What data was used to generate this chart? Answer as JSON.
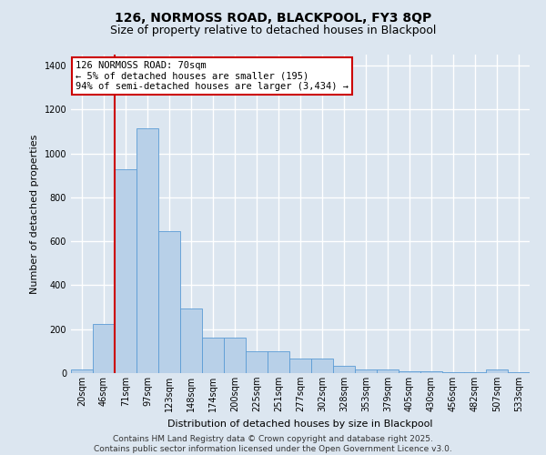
{
  "title": "126, NORMOSS ROAD, BLACKPOOL, FY3 8QP",
  "subtitle": "Size of property relative to detached houses in Blackpool",
  "xlabel": "Distribution of detached houses by size in Blackpool",
  "ylabel": "Number of detached properties",
  "footer": "Contains HM Land Registry data © Crown copyright and database right 2025.\nContains public sector information licensed under the Open Government Licence v3.0.",
  "categories": [
    "20sqm",
    "46sqm",
    "71sqm",
    "97sqm",
    "123sqm",
    "148sqm",
    "174sqm",
    "200sqm",
    "225sqm",
    "251sqm",
    "277sqm",
    "302sqm",
    "328sqm",
    "353sqm",
    "379sqm",
    "405sqm",
    "430sqm",
    "456sqm",
    "482sqm",
    "507sqm",
    "533sqm"
  ],
  "values": [
    15,
    225,
    930,
    1115,
    645,
    295,
    160,
    160,
    100,
    100,
    65,
    65,
    32,
    18,
    18,
    10,
    10,
    5,
    5,
    15,
    3
  ],
  "bar_color": "#b8d0e8",
  "bar_edge_color": "#5b9bd5",
  "annotation_text": "126 NORMOSS ROAD: 70sqm\n← 5% of detached houses are smaller (195)\n94% of semi-detached houses are larger (3,434) →",
  "annotation_box_color": "#ffffff",
  "annotation_box_edge_color": "#cc0000",
  "vline_x": 1.5,
  "vline_color": "#cc0000",
  "ylim": [
    0,
    1450
  ],
  "yticks": [
    0,
    200,
    400,
    600,
    800,
    1000,
    1200,
    1400
  ],
  "background_color": "#dce6f0",
  "plot_background_color": "#dce6f0",
  "grid_color": "#ffffff",
  "title_fontsize": 10,
  "subtitle_fontsize": 9,
  "axis_label_fontsize": 8,
  "tick_fontsize": 7,
  "annotation_fontsize": 7.5,
  "footer_fontsize": 6.5
}
